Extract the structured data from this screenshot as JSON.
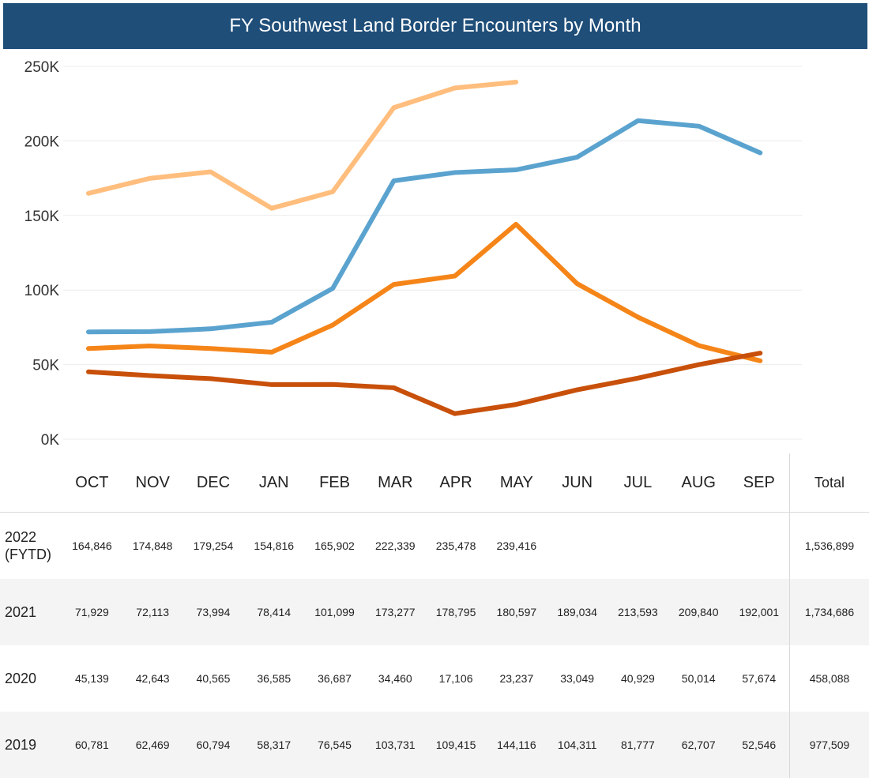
{
  "title": "FY Southwest Land Border Encounters by Month",
  "chart_data": {
    "type": "line",
    "title": "FY Southwest Land Border Encounters by Month",
    "categories": [
      "OCT",
      "NOV",
      "DEC",
      "JAN",
      "FEB",
      "MAR",
      "APR",
      "MAY",
      "JUN",
      "JUL",
      "AUG",
      "SEP"
    ],
    "y_ticks": [
      "0K",
      "50K",
      "100K",
      "150K",
      "200K",
      "250K"
    ],
    "ylim": [
      0,
      250000
    ],
    "grid": true,
    "series": [
      {
        "name": "2022 (FYTD)",
        "color": "#ffbe7d",
        "values": [
          164846,
          174848,
          179254,
          154816,
          165902,
          222339,
          235478,
          239416,
          null,
          null,
          null,
          null
        ]
      },
      {
        "name": "2021",
        "color": "#5ba3cf",
        "values": [
          71929,
          72113,
          73994,
          78414,
          101099,
          173277,
          178795,
          180597,
          189034,
          213593,
          209840,
          192001
        ]
      },
      {
        "name": "2020",
        "color": "#c8500a",
        "values": [
          45139,
          42643,
          40565,
          36585,
          36687,
          34460,
          17106,
          23237,
          33049,
          40929,
          50014,
          57674
        ]
      },
      {
        "name": "2019",
        "color": "#f58518",
        "values": [
          60781,
          62469,
          60794,
          58317,
          76545,
          103731,
          109415,
          144116,
          104311,
          81777,
          62707,
          52546
        ]
      }
    ]
  },
  "table": {
    "total_label": "Total",
    "rows": [
      {
        "year": "2022 (FYTD)",
        "cells": [
          "164,846",
          "174,848",
          "179,254",
          "154,816",
          "165,902",
          "222,339",
          "235,478",
          "239,416",
          "",
          "",
          "",
          ""
        ],
        "total": "1,536,899"
      },
      {
        "year": "2021",
        "cells": [
          "71,929",
          "72,113",
          "73,994",
          "78,414",
          "101,099",
          "173,277",
          "178,795",
          "180,597",
          "189,034",
          "213,593",
          "209,840",
          "192,001"
        ],
        "total": "1,734,686"
      },
      {
        "year": "2020",
        "cells": [
          "45,139",
          "42,643",
          "40,565",
          "36,585",
          "36,687",
          "34,460",
          "17,106",
          "23,237",
          "33,049",
          "40,929",
          "50,014",
          "57,674"
        ],
        "total": "458,088"
      },
      {
        "year": "2019",
        "cells": [
          "60,781",
          "62,469",
          "60,794",
          "58,317",
          "76,545",
          "103,731",
          "109,415",
          "144,116",
          "104,311",
          "81,777",
          "62,707",
          "52,546"
        ],
        "total": "977,509"
      }
    ]
  }
}
